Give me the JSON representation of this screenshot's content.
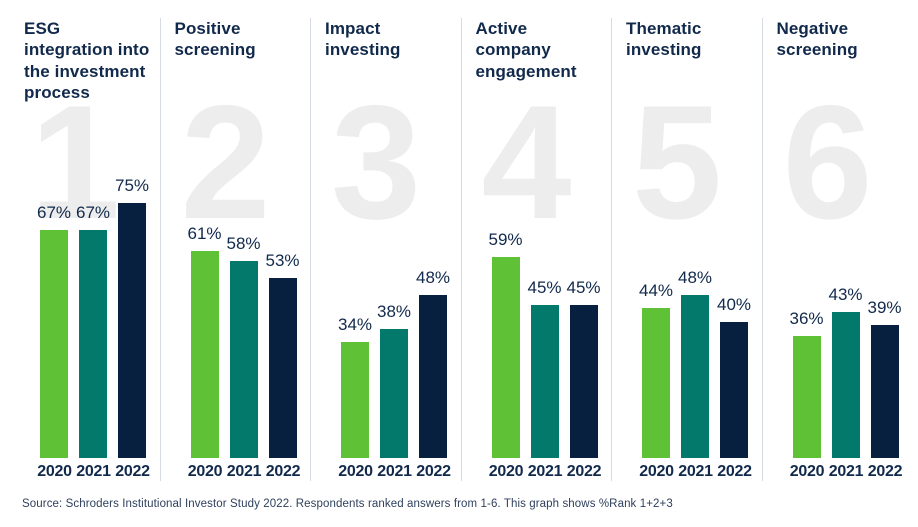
{
  "source_note": "Source: Schroders Institutional Investor Study 2022. Respondents ranked answers from 1-6. This graph shows %Rank 1+2+3",
  "colors": {
    "bar_2020_green": "#5fc236",
    "bar_2021_teal": "#03796b",
    "bar_2022_navy": "#07203f",
    "title_navy": "#11294b",
    "rank_number_gray": "#ededed",
    "divider_gray": "#d6dbe3"
  },
  "chart_data": {
    "type": "bar",
    "unit": "%",
    "ylim": [
      0,
      100
    ],
    "categories": [
      "2020",
      "2021",
      "2022"
    ],
    "series_colors": [
      "#5fc236",
      "#03796b",
      "#07203f"
    ],
    "legend_position": "none",
    "grid": false,
    "panels": [
      {
        "rank": "1",
        "title": "ESG integration into the investment process",
        "values": [
          67,
          67,
          75
        ],
        "labels": [
          "67%",
          "67%",
          "75%"
        ]
      },
      {
        "rank": "2",
        "title": "Positive screening",
        "values": [
          61,
          58,
          53
        ],
        "labels": [
          "61%",
          "58%",
          "53%"
        ]
      },
      {
        "rank": "3",
        "title": "Impact investing",
        "values": [
          34,
          38,
          48
        ],
        "labels": [
          "34%",
          "38%",
          "48%"
        ]
      },
      {
        "rank": "4",
        "title": "Active company engagement",
        "values": [
          59,
          45,
          45
        ],
        "labels": [
          "59%",
          "45%",
          "45%"
        ]
      },
      {
        "rank": "5",
        "title": "Thematic investing",
        "values": [
          44,
          48,
          40
        ],
        "labels": [
          "44%",
          "48%",
          "40%"
        ]
      },
      {
        "rank": "6",
        "title": "Negative screening",
        "values": [
          36,
          43,
          39
        ],
        "labels": [
          "36%",
          "43%",
          "39%"
        ]
      }
    ]
  }
}
